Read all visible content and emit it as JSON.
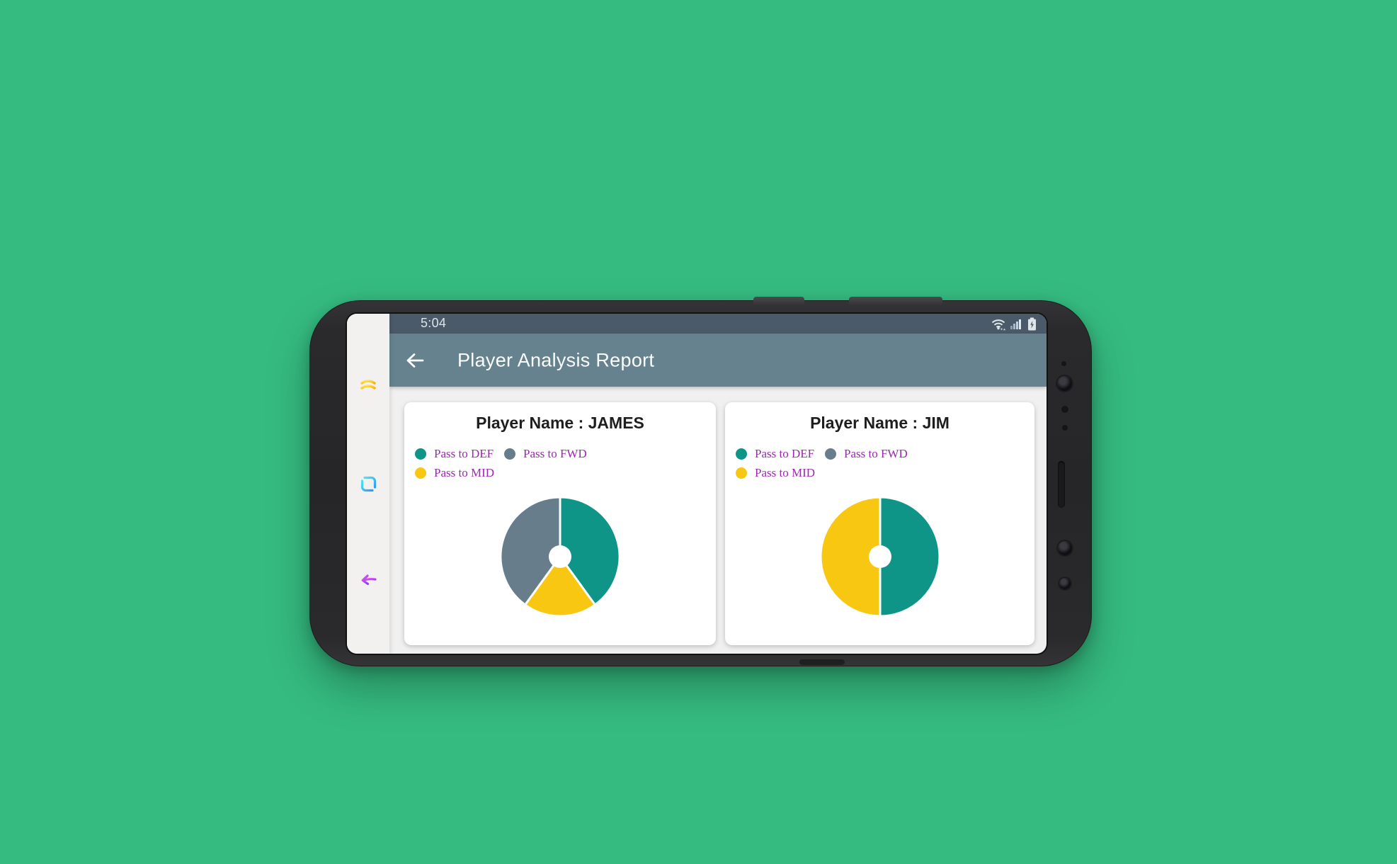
{
  "background_color": "#35bb80",
  "colors": {
    "status_bar": "#4a5a68",
    "app_bar": "#66828e",
    "content_background": "#f0f0f0",
    "card_background": "#ffffff",
    "legend_text": "#9c27b0",
    "teal": "#0f9488",
    "blue_gray": "#677d8c",
    "amber": "#f8c711"
  },
  "status_bar": {
    "time": "5:04",
    "icons": [
      "wifi-icon",
      "signal-strength-icon",
      "battery-charging-icon"
    ]
  },
  "nav_rail": {
    "icons": [
      "yellow-wave-lines-icon",
      "cyan-rounded-square-icon",
      "purple-back-arrow-icon"
    ]
  },
  "app_bar": {
    "back_icon": "arrow-left",
    "title": "Player Analysis Report"
  },
  "chart_data": [
    {
      "type": "pie",
      "title": "Player Name : JAMES",
      "legend": [
        {
          "label": "Pass to DEF",
          "color": "#0f9488"
        },
        {
          "label": "Pass to FWD",
          "color": "#677d8c"
        },
        {
          "label": "Pass to MID",
          "color": "#f8c711"
        }
      ],
      "slices": [
        {
          "label": "Pass to DEF",
          "value": 40,
          "color": "#0f9488"
        },
        {
          "label": "Pass to MID",
          "value": 20,
          "color": "#f8c711"
        },
        {
          "label": "Pass to FWD",
          "value": 40,
          "color": "#677d8c"
        }
      ],
      "donut_hole_ratio": 0.19,
      "start_angle_deg": 0,
      "direction": "clockwise",
      "legend_position": "top-left"
    },
    {
      "type": "pie",
      "title": "Player Name : JIM",
      "legend": [
        {
          "label": "Pass to DEF",
          "color": "#0f9488"
        },
        {
          "label": "Pass to FWD",
          "color": "#677d8c"
        },
        {
          "label": "Pass to MID",
          "color": "#f8c711"
        }
      ],
      "slices": [
        {
          "label": "Pass to DEF",
          "value": 50,
          "color": "#0f9488"
        },
        {
          "label": "Pass to MID",
          "value": 50,
          "color": "#f8c711"
        },
        {
          "label": "Pass to FWD",
          "value": 0,
          "color": "#677d8c"
        }
      ],
      "donut_hole_ratio": 0.19,
      "start_angle_deg": 0,
      "direction": "clockwise",
      "legend_position": "top-left"
    }
  ]
}
